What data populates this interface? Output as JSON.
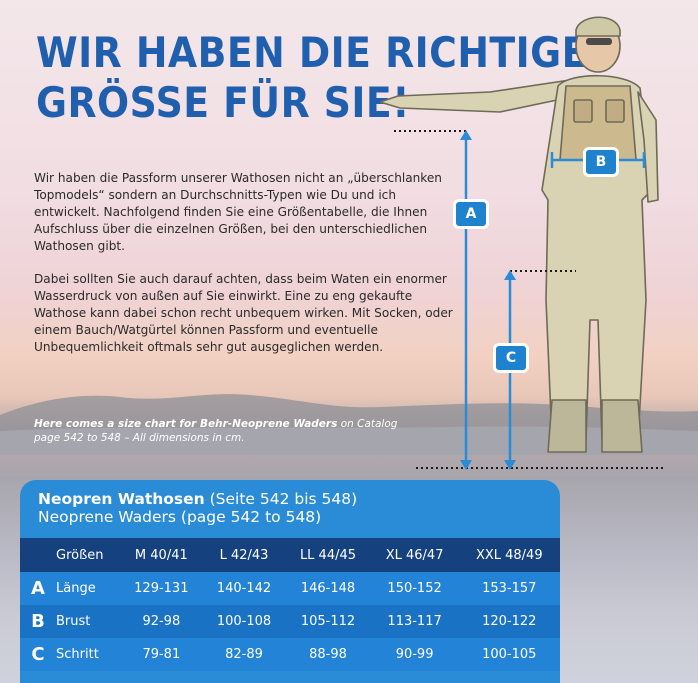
{
  "headline": {
    "line1": "WIR HABEN DIE RICHTIGE",
    "line2": "GRÖSSE FÜR SIE!"
  },
  "intro": {
    "paragraph1": "Wir haben die Passform unserer Wathosen nicht an „überschlanken Topmodels“ sondern an Durchschnitts-Typen wie Du und ich entwickelt. Nachfolgend finden Sie eine Größentabelle, die Ihnen Aufschluss über die einzelnen Größen, bei den unterschiedlichen Wathosen gibt.",
    "paragraph2": "Dabei sollten Sie auch darauf achten, dass beim Waten ein enormer Wasserdruck von außen auf Sie einwirkt. Eine zu eng gekaufte Wathose kann dabei schon recht unbequem wirken. Mit Socken, oder einem Bauch/Watgürtel können Passform und eventuelle Unbequemlichkeit oftmals sehr gut ausgeglichen werden."
  },
  "note": {
    "bold": "Here comes a size chart for Behr-Neoprene Waders",
    "rest": " on Catalog page 542 to 548 – All dimensions in cm."
  },
  "figure": {
    "markers": {
      "a": "A",
      "b": "B",
      "c": "C"
    }
  },
  "table": {
    "title_bold": "Neopren Wathosen",
    "title_light": " (Seite 542 bis 548)",
    "subtitle": "Neoprene Waders (page 542 to 548)",
    "header": [
      "Größen",
      "M 40/41",
      "L 42/43",
      "LL 44/45",
      "XL 46/47",
      "XXL 48/49"
    ],
    "rows": [
      {
        "key": "A",
        "label": "Länge",
        "values": [
          "129-131",
          "140-142",
          "146-148",
          "150-152",
          "153-157"
        ]
      },
      {
        "key": "B",
        "label": "Brust",
        "values": [
          "92-98",
          "100-108",
          "105-112",
          "113-117",
          "120-122"
        ]
      },
      {
        "key": "C",
        "label": "Schritt",
        "values": [
          "79-81",
          "82-89",
          "88-98",
          "90-99",
          "100-105"
        ]
      }
    ]
  },
  "colors": {
    "headline_blue": "#1f5fae",
    "table_blue": "#2a8bd6",
    "table_header": "#15417f"
  }
}
